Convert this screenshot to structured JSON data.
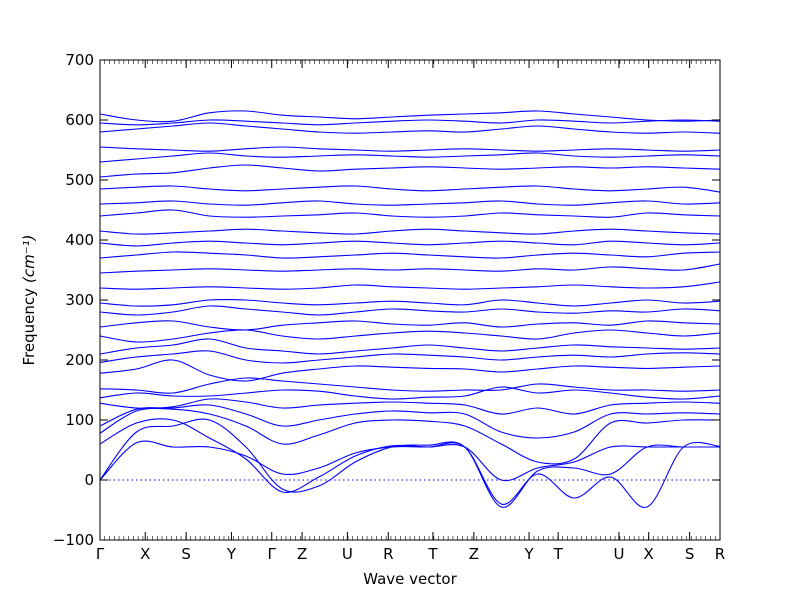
{
  "chart_data": {
    "type": "line",
    "title": "",
    "xlabel": "Wave vector",
    "ylabel": "Frequency",
    "ylabel_unit": "(cm⁻¹)",
    "ylim": [
      -100,
      700
    ],
    "yticks": [
      "−100",
      "0",
      "100",
      "200",
      "300",
      "400",
      "500",
      "600",
      "700"
    ],
    "ytick_values": [
      -100,
      0,
      100,
      200,
      300,
      400,
      500,
      600,
      700
    ],
    "xticks": [
      {
        "label": "Γ",
        "x": 0
      },
      {
        "label": "X",
        "x": 0.073
      },
      {
        "label": "S",
        "x": 0.139
      },
      {
        "label": "Y",
        "x": 0.212
      },
      {
        "label": "Γ",
        "x": 0.277
      },
      {
        "label": "Z",
        "x": 0.326
      },
      {
        "label": "U",
        "x": 0.399
      },
      {
        "label": "R",
        "x": 0.465
      },
      {
        "label": "T",
        "x": 0.537
      },
      {
        "label": "Z",
        "x": 0.603
      },
      {
        "label": "Y",
        "x": 0.692
      },
      {
        "label": "T",
        "x": 0.739
      },
      {
        "label": "U",
        "x": 0.837
      },
      {
        "label": "X",
        "x": 0.885
      },
      {
        "label": "S",
        "x": 0.951
      },
      {
        "label": "R",
        "x": 1.0
      }
    ],
    "xlim": [
      0,
      1
    ],
    "zero_line": 0,
    "colors": {
      "bands": "#0000ff",
      "zero": "#0000ff"
    },
    "series": [
      {
        "values": [
          0,
          62,
          55,
          55,
          40,
          10,
          20,
          45,
          55,
          55,
          55,
          0,
          20,
          30,
          55,
          55,
          55,
          55
        ]
      },
      {
        "values": [
          0,
          80,
          90,
          100,
          55,
          -15,
          -10,
          30,
          55,
          58,
          55,
          -45,
          15,
          20,
          10,
          55,
          55,
          55
        ]
      },
      {
        "values": [
          60,
          95,
          100,
          70,
          35,
          -20,
          5,
          40,
          57,
          55,
          55,
          -40,
          10,
          -30,
          5,
          -45,
          55,
          56
        ]
      },
      {
        "values": [
          78,
          115,
          118,
          110,
          90,
          60,
          75,
          95,
          100,
          98,
          90,
          60,
          30,
          35,
          95,
          95,
          100,
          100
        ]
      },
      {
        "values": [
          90,
          118,
          120,
          125,
          110,
          90,
          100,
          110,
          115,
          112,
          110,
          80,
          70,
          80,
          110,
          110,
          112,
          110
        ]
      },
      {
        "values": [
          128,
          120,
          122,
          135,
          130,
          120,
          125,
          128,
          130,
          128,
          125,
          110,
          120,
          110,
          125,
          128,
          130,
          128
        ]
      },
      {
        "values": [
          137,
          145,
          140,
          140,
          145,
          150,
          148,
          140,
          135,
          138,
          140,
          155,
          145,
          150,
          145,
          138,
          135,
          140
        ]
      },
      {
        "values": [
          152,
          150,
          145,
          160,
          170,
          165,
          160,
          155,
          150,
          148,
          150,
          150,
          160,
          155,
          150,
          150,
          148,
          150
        ]
      },
      {
        "values": [
          178,
          185,
          200,
          175,
          165,
          178,
          185,
          190,
          188,
          186,
          185,
          180,
          185,
          190,
          188,
          186,
          188,
          190
        ]
      },
      {
        "values": [
          196,
          205,
          210,
          215,
          200,
          195,
          200,
          205,
          210,
          208,
          205,
          200,
          205,
          208,
          205,
          210,
          212,
          210
        ]
      },
      {
        "values": [
          210,
          220,
          225,
          235,
          220,
          215,
          210,
          215,
          220,
          225,
          220,
          215,
          220,
          225,
          222,
          220,
          218,
          220
        ]
      },
      {
        "values": [
          240,
          230,
          235,
          245,
          250,
          240,
          235,
          240,
          245,
          248,
          245,
          240,
          235,
          245,
          250,
          245,
          240,
          245
        ]
      },
      {
        "values": [
          255,
          262,
          265,
          255,
          250,
          258,
          262,
          265,
          260,
          258,
          262,
          255,
          260,
          262,
          258,
          265,
          262,
          260
        ]
      },
      {
        "values": [
          280,
          275,
          280,
          290,
          285,
          280,
          275,
          280,
          285,
          282,
          280,
          285,
          280,
          278,
          282,
          280,
          285,
          282
        ]
      },
      {
        "values": [
          295,
          290,
          292,
          300,
          300,
          295,
          292,
          295,
          298,
          295,
          292,
          300,
          295,
          290,
          295,
          300,
          295,
          298
        ]
      },
      {
        "values": [
          320,
          318,
          320,
          322,
          320,
          318,
          320,
          325,
          322,
          320,
          318,
          320,
          322,
          325,
          322,
          320,
          322,
          330
        ]
      },
      {
        "values": [
          345,
          348,
          350,
          352,
          350,
          348,
          350,
          352,
          350,
          352,
          350,
          348,
          352,
          350,
          355,
          352,
          350,
          360
        ]
      },
      {
        "values": [
          370,
          375,
          380,
          378,
          375,
          370,
          372,
          375,
          378,
          375,
          372,
          370,
          375,
          378,
          375,
          372,
          378,
          380
        ]
      },
      {
        "values": [
          395,
          390,
          395,
          398,
          395,
          392,
          395,
          398,
          395,
          392,
          395,
          398,
          395,
          392,
          398,
          395,
          392,
          395
        ]
      },
      {
        "values": [
          415,
          410,
          412,
          415,
          418,
          415,
          412,
          410,
          415,
          418,
          415,
          412,
          410,
          415,
          418,
          415,
          412,
          410
        ]
      },
      {
        "values": [
          440,
          445,
          450,
          440,
          438,
          440,
          442,
          445,
          440,
          438,
          440,
          445,
          442,
          440,
          438,
          445,
          442,
          440
        ]
      },
      {
        "values": [
          460,
          462,
          465,
          460,
          458,
          462,
          465,
          460,
          458,
          460,
          462,
          465,
          460,
          458,
          462,
          465,
          460,
          462
        ]
      },
      {
        "values": [
          485,
          488,
          490,
          485,
          482,
          485,
          488,
          490,
          485,
          482,
          485,
          488,
          490,
          485,
          482,
          485,
          488,
          480
        ]
      },
      {
        "values": [
          505,
          510,
          512,
          520,
          525,
          520,
          515,
          518,
          520,
          522,
          520,
          518,
          520,
          522,
          520,
          522,
          520,
          518
        ]
      },
      {
        "values": [
          530,
          535,
          540,
          545,
          540,
          538,
          540,
          542,
          540,
          538,
          540,
          542,
          545,
          540,
          538,
          540,
          542,
          540
        ]
      },
      {
        "values": [
          555,
          552,
          550,
          548,
          552,
          555,
          552,
          550,
          548,
          550,
          552,
          550,
          548,
          550,
          552,
          550,
          548,
          550
        ]
      },
      {
        "values": [
          580,
          585,
          590,
          595,
          590,
          585,
          580,
          578,
          580,
          582,
          580,
          585,
          590,
          585,
          580,
          578,
          580,
          578
        ]
      },
      {
        "values": [
          595,
          592,
          595,
          600,
          598,
          595,
          592,
          595,
          598,
          600,
          598,
          595,
          600,
          598,
          595,
          598,
          600,
          598
        ]
      },
      {
        "values": [
          610,
          600,
          598,
          612,
          615,
          608,
          605,
          602,
          605,
          608,
          610,
          612,
          615,
          610,
          605,
          600,
          598,
          600
        ]
      }
    ]
  }
}
